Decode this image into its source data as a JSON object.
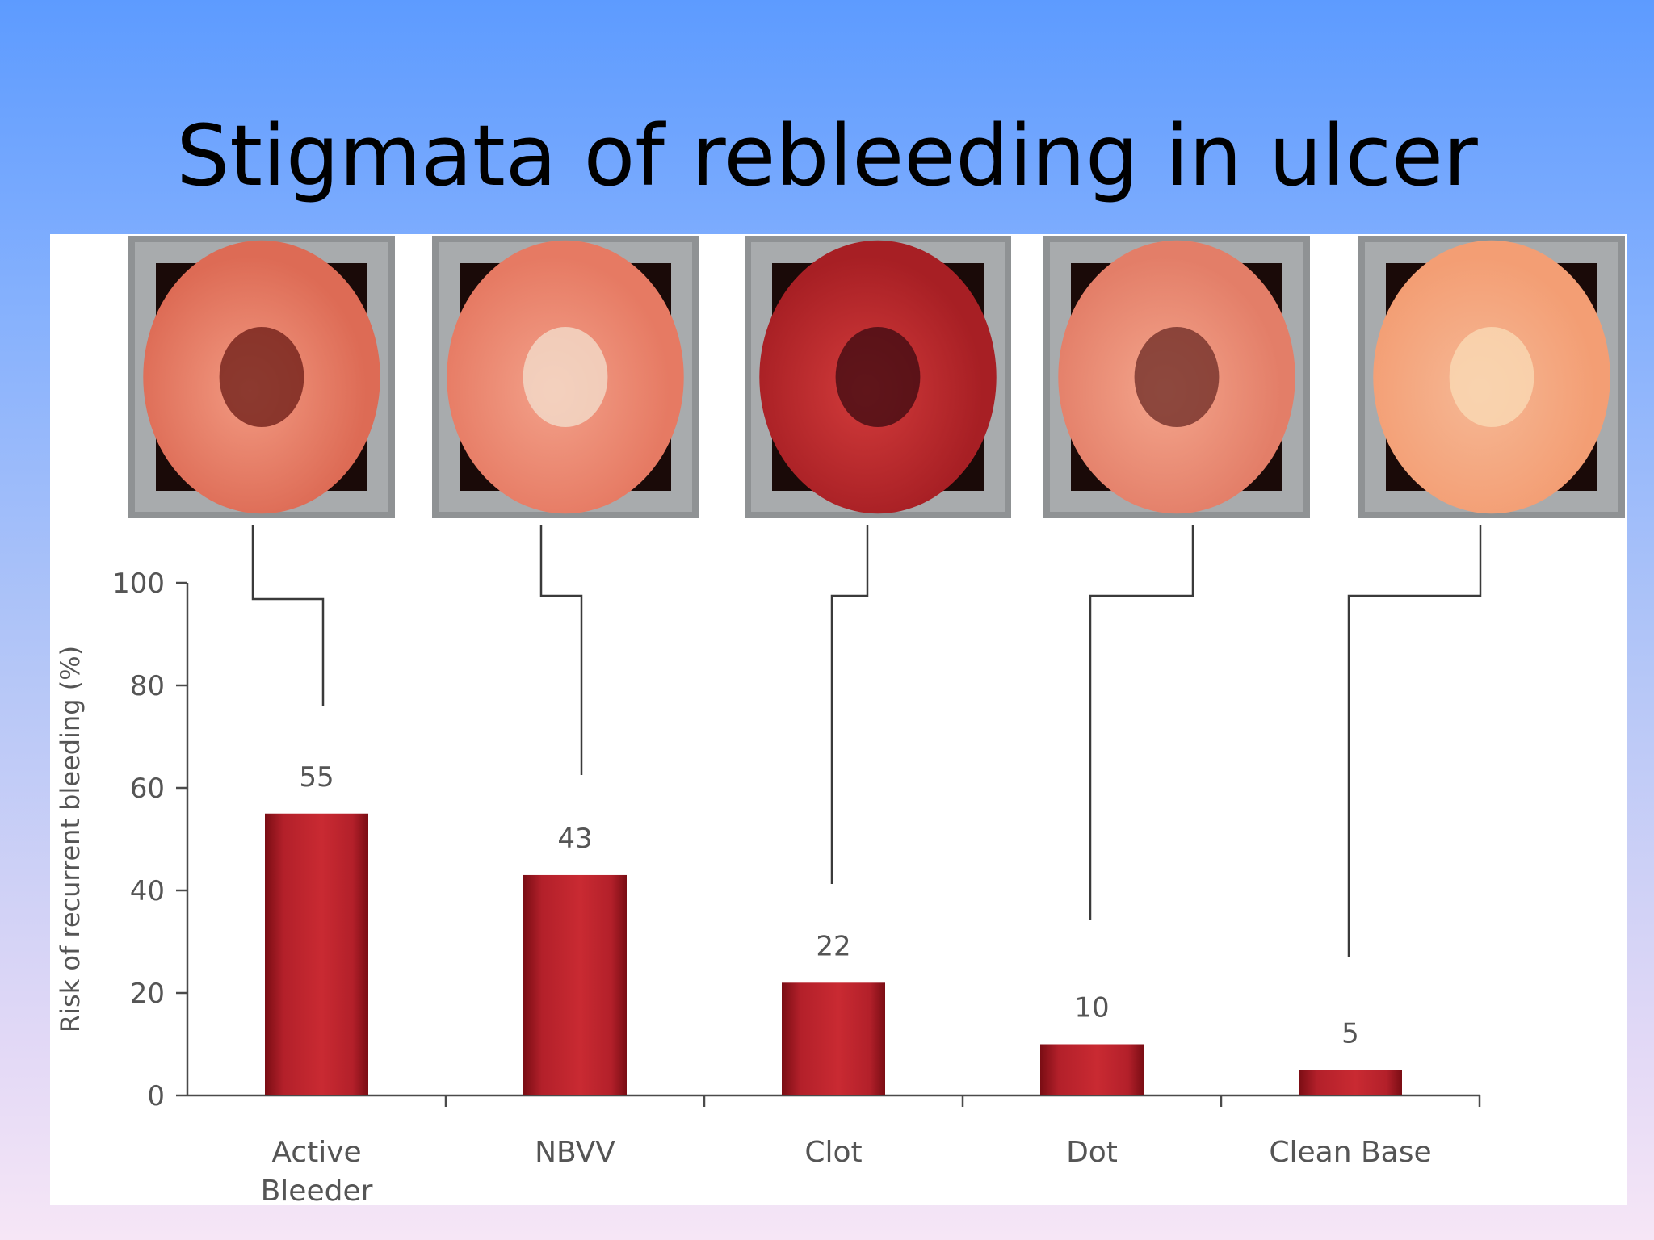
{
  "slide": {
    "title": "Stigmata of rebleeding in ulcer"
  },
  "chart_data": {
    "type": "bar",
    "categories": [
      "Active Bleeder",
      "NBVV",
      "Clot",
      "Dot",
      "Clean Base"
    ],
    "category_lines": [
      [
        "Active",
        "Bleeder"
      ],
      [
        "NBVV"
      ],
      [
        "Clot"
      ],
      [
        "Dot"
      ],
      [
        "Clean Base"
      ]
    ],
    "values": [
      55,
      43,
      22,
      10,
      5
    ],
    "value_labels": [
      "55",
      "43",
      "22",
      "10",
      "5"
    ],
    "title": "",
    "xlabel": "",
    "ylabel": "Risk of recurrent bleeding (%)",
    "ylim": [
      0,
      100
    ],
    "yticks": [
      0,
      20,
      40,
      60,
      80,
      100
    ],
    "grid": false,
    "colors": {
      "bar": "#b3202a",
      "bar_dark": "#7a0d14",
      "bar_light": "#c92a32"
    }
  },
  "endoscopy_images": [
    {
      "name": "endoscopy-image-active-bleeder",
      "colors": [
        "#f29a82",
        "#dd6b55",
        "#6a1a14"
      ]
    },
    {
      "name": "endoscopy-image-nbvv",
      "colors": [
        "#f3a18a",
        "#e67a63",
        "#f3e0cf"
      ]
    },
    {
      "name": "endoscopy-image-clot",
      "colors": [
        "#d23b3b",
        "#a71f24",
        "#3a0a10"
      ]
    },
    {
      "name": "endoscopy-image-dot",
      "colors": [
        "#f4a58c",
        "#e37e68",
        "#6b2a24"
      ]
    },
    {
      "name": "endoscopy-image-clean-base",
      "colors": [
        "#f6b895",
        "#f39e74",
        "#f9dcb7"
      ]
    }
  ]
}
